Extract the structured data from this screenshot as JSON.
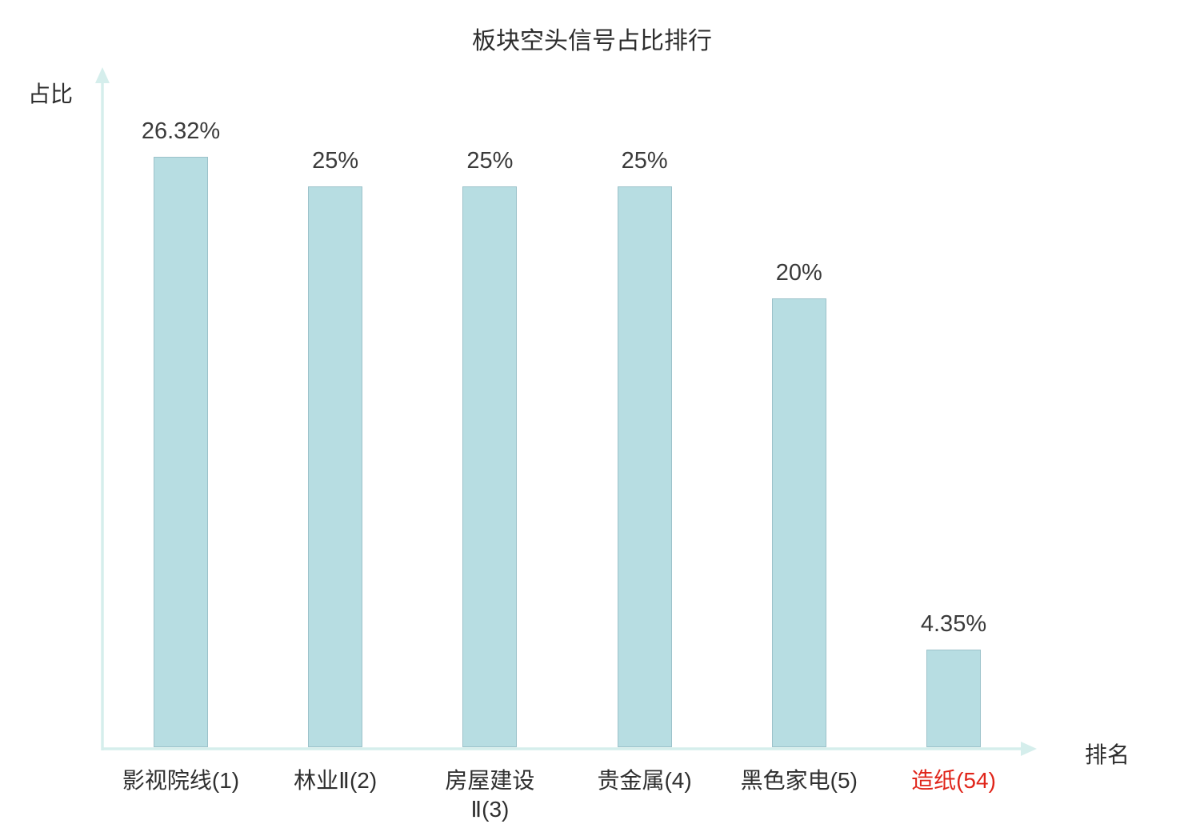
{
  "chart_data": {
    "type": "bar",
    "title": "板块空头信号占比排行",
    "ylabel": "占比",
    "xlabel": "排名",
    "categories": [
      "影视院线(1)",
      "林业Ⅱ(2)",
      "房屋建设\nⅡ(3)",
      "贵金属(4)",
      "黑色家电(5)",
      "造纸(54)"
    ],
    "values": [
      26.32,
      25,
      25,
      25,
      20,
      4.35
    ],
    "value_labels": [
      "26.32%",
      "25%",
      "25%",
      "25%",
      "20%",
      "4.35%"
    ],
    "ylim": [
      0,
      29.8
    ],
    "grid": false,
    "legend_position": "none",
    "bar_color": "#b7dde2",
    "bar_border_color": "#9cc2ca",
    "axis_color": "#d5eeec",
    "value_label_color": "#3a3a3a",
    "category_label_color": "#2f2f2f",
    "highlight_index": 5,
    "highlight_color": "#e0251a"
  }
}
